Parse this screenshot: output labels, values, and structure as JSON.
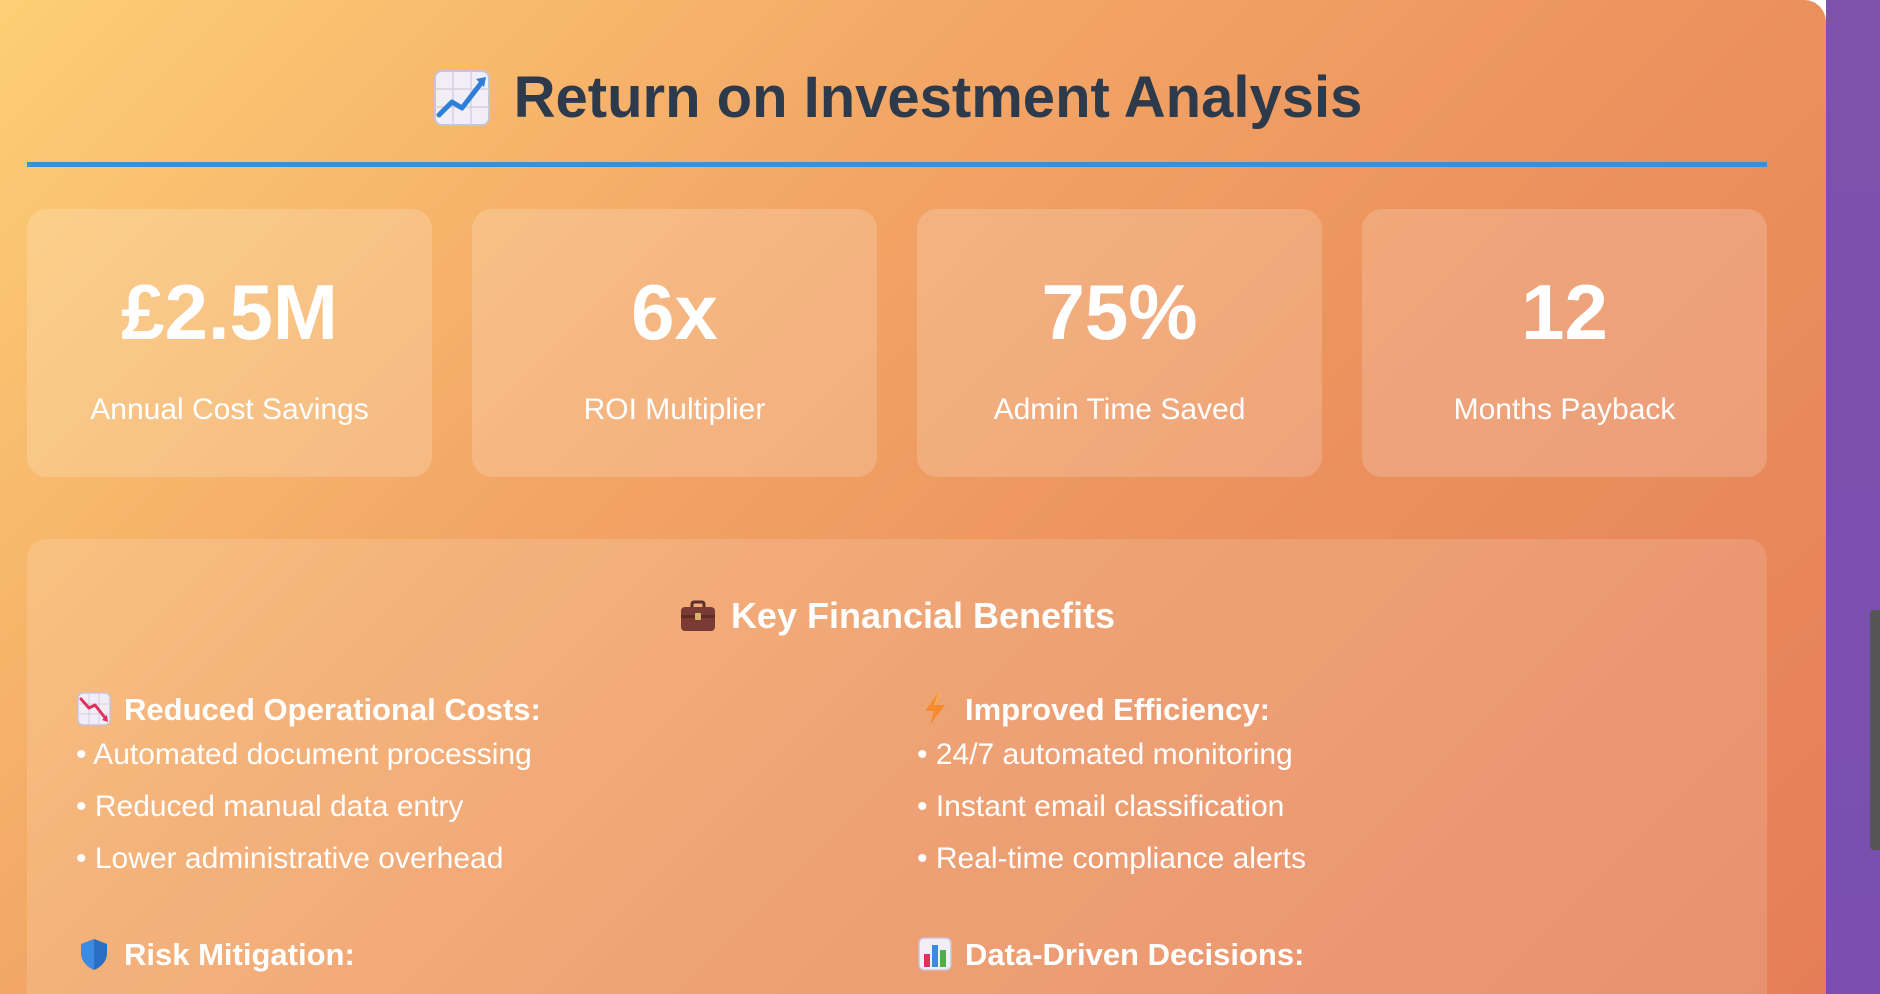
{
  "header": {
    "title": "Return on Investment Analysis",
    "title_icon": "chart-increasing-icon",
    "rule_color": "#3b8fd6"
  },
  "stats": [
    {
      "value": "£2.5M",
      "label": "Annual Cost Savings"
    },
    {
      "value": "6x",
      "label": "ROI Multiplier"
    },
    {
      "value": "75%",
      "label": "Admin Time Saved"
    },
    {
      "value": "12",
      "label": "Months Payback"
    }
  ],
  "benefits": {
    "title": "Key Financial Benefits",
    "title_icon": "briefcase-icon",
    "groups": [
      {
        "icon": "chart-decreasing-icon",
        "title": "Reduced Operational Costs:",
        "items": [
          "• Automated document processing",
          "• Reduced manual data entry",
          "• Lower administrative overhead"
        ]
      },
      {
        "icon": "lightning-icon",
        "title": "Improved Efficiency:",
        "items": [
          "• 24/7 automated monitoring",
          "• Instant email classification",
          "• Real-time compliance alerts"
        ]
      },
      {
        "icon": "shield-icon",
        "title": "Risk Mitigation:",
        "items": []
      },
      {
        "icon": "bar-chart-icon",
        "title": "Data-Driven Decisions:",
        "items": []
      }
    ]
  },
  "colors": {
    "title_text": "#2d3a4b",
    "accent_blue": "#3b8fd6",
    "side_purple": "#7a4fae"
  }
}
